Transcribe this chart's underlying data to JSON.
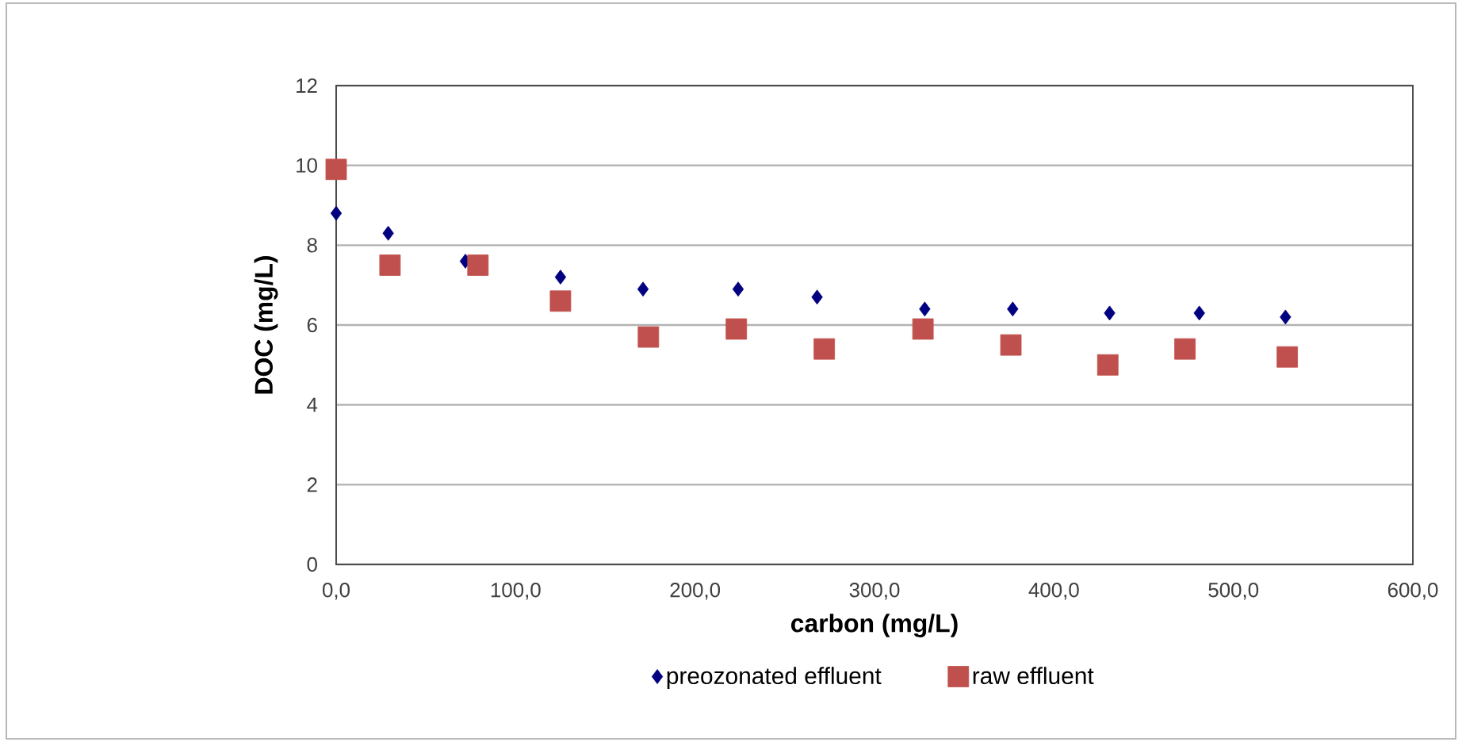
{
  "chart_data": {
    "type": "scatter",
    "xlabel": "carbon (mg/L)",
    "ylabel": "DOC (mg/L)",
    "xlim": [
      0,
      600
    ],
    "ylim": [
      0,
      12
    ],
    "xticks": [
      {
        "value": 0,
        "label": "0,0"
      },
      {
        "value": 100,
        "label": "100,0"
      },
      {
        "value": 200,
        "label": "200,0"
      },
      {
        "value": 300,
        "label": "300,0"
      },
      {
        "value": 400,
        "label": "400,0"
      },
      {
        "value": 500,
        "label": "500,0"
      },
      {
        "value": 600,
        "label": "600,0"
      }
    ],
    "yticks": [
      0,
      2,
      4,
      6,
      8,
      10,
      12
    ],
    "grid": "y",
    "legend": "bottom",
    "series": [
      {
        "name": "preozonated effluent",
        "color": "#000080",
        "marker": "diamond",
        "x": [
          0,
          29,
          72,
          125,
          171,
          224,
          268,
          328,
          377,
          431,
          481,
          529
        ],
        "values": [
          8.8,
          8.3,
          7.6,
          7.2,
          6.9,
          6.9,
          6.7,
          6.4,
          6.4,
          6.3,
          6.3,
          6.2
        ]
      },
      {
        "name": "raw effluent",
        "color": "#c0504d",
        "marker": "square",
        "x": [
          0,
          30,
          79,
          125,
          174,
          223,
          272,
          327,
          376,
          430,
          473,
          530
        ],
        "values": [
          9.9,
          7.5,
          7.5,
          6.6,
          5.7,
          5.9,
          5.4,
          5.9,
          5.5,
          5.0,
          5.4,
          5.2
        ]
      }
    ]
  }
}
